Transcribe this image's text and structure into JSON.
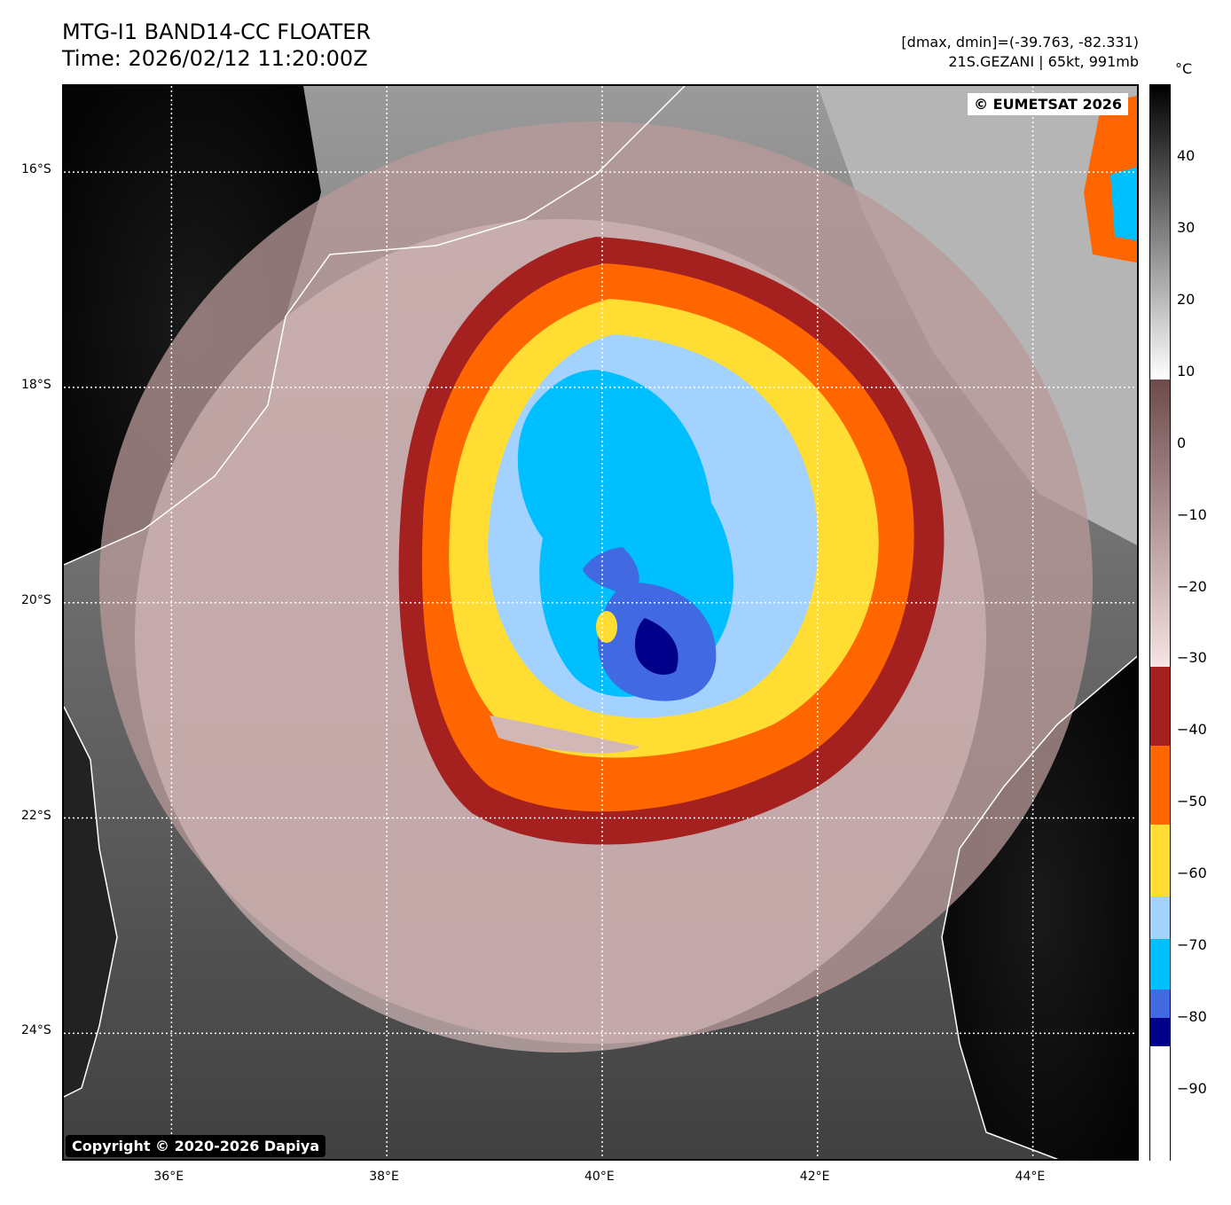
{
  "title": {
    "line1": "MTG-I1 BAND14-CC FLOATER",
    "line2": "Time: 2026/02/12 11:20:00Z"
  },
  "info": {
    "range": "[dmax, dmin]=(-39.763, -82.331)",
    "storm": "21S.GEZANI | 65kt, 991mb"
  },
  "badges": {
    "eumetsat": "© EUMETSAT 2026",
    "copyright": "Copyright © 2020-2026 Dapiya"
  },
  "map": {
    "lon_range": [
      35,
      45
    ],
    "lat_range": [
      -25.2,
      -15.2
    ],
    "lon_ticks": [
      {
        "value": 36,
        "label": "36°E"
      },
      {
        "value": 38,
        "label": "38°E"
      },
      {
        "value": 40,
        "label": "40°E"
      },
      {
        "value": 42,
        "label": "42°E"
      },
      {
        "value": 44,
        "label": "44°E"
      }
    ],
    "lat_ticks": [
      {
        "value": -16,
        "label": "16°S"
      },
      {
        "value": -18,
        "label": "18°S"
      },
      {
        "value": -20,
        "label": "20°S"
      },
      {
        "value": -22,
        "label": "22°S"
      },
      {
        "value": -24,
        "label": "24°S"
      }
    ],
    "grid": true,
    "grid_style": "dotted white",
    "storm_center": {
      "lon": 40.7,
      "lat": -20.4
    }
  },
  "colorbar": {
    "unit": "°C",
    "range": [
      -100,
      50
    ],
    "labels": [
      {
        "value": 40,
        "text": "40"
      },
      {
        "value": 30,
        "text": "30"
      },
      {
        "value": 20,
        "text": "20"
      },
      {
        "value": 10,
        "text": "10"
      },
      {
        "value": 0,
        "text": "0"
      },
      {
        "value": -10,
        "text": "−10"
      },
      {
        "value": -20,
        "text": "−20"
      },
      {
        "value": -30,
        "text": "−30"
      },
      {
        "value": -40,
        "text": "−40"
      },
      {
        "value": -50,
        "text": "−50"
      },
      {
        "value": -60,
        "text": "−60"
      },
      {
        "value": -70,
        "text": "−70"
      },
      {
        "value": -80,
        "text": "−80"
      },
      {
        "value": -90,
        "text": "−90"
      }
    ],
    "stops": [
      {
        "from": 9,
        "to": 50,
        "type": "gradient",
        "colors": [
          "#ffffff",
          "#000000"
        ]
      },
      {
        "from": -31,
        "to": 9,
        "type": "gradient",
        "colors": [
          "#f6e3e3",
          "#6e4a4a"
        ]
      },
      {
        "from": -42,
        "to": -31,
        "color": "#a4211f"
      },
      {
        "from": -53,
        "to": -42,
        "color": "#ff6600"
      },
      {
        "from": -63,
        "to": -53,
        "color": "#ffdd33"
      },
      {
        "from": -69,
        "to": -63,
        "color": "#a3d2ff"
      },
      {
        "from": -76,
        "to": -69,
        "color": "#00bfff"
      },
      {
        "from": -80,
        "to": -76,
        "color": "#4169e1"
      },
      {
        "from": -84,
        "to": -80,
        "color": "#00008b"
      },
      {
        "from": -100,
        "to": -84,
        "color": "#ffffff"
      }
    ]
  }
}
